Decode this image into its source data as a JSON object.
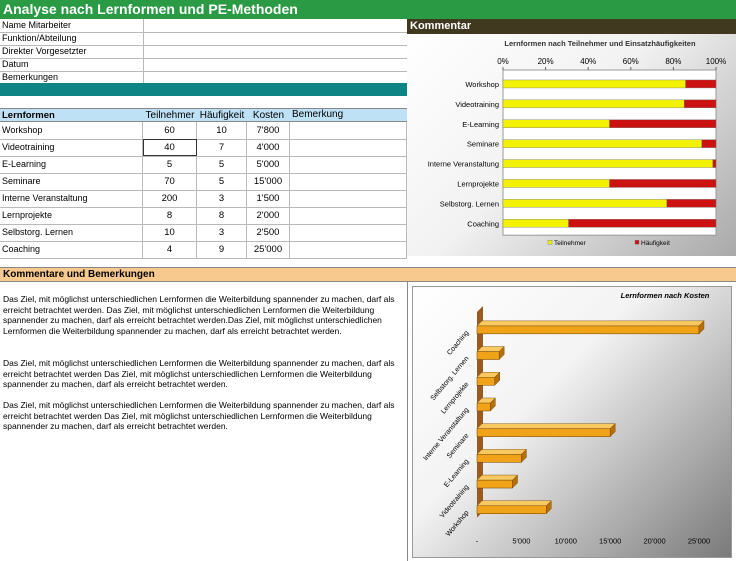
{
  "title": "Analyse nach Lernformen und PE-Methoden",
  "form_fields": [
    "Name Mitarbeiter",
    "Funktion/Abteilung",
    "Direkter Vorgesetzter",
    "Datum",
    "Bemerkungen"
  ],
  "table": {
    "headers": [
      "Lernformen",
      "Teilnehmer",
      "Häufigkeit",
      "Kosten",
      "Bemerkung"
    ],
    "rows": [
      [
        "Workshop",
        "60",
        "10",
        "7'800",
        ""
      ],
      [
        "Videotraining",
        "40",
        "7",
        "4'000",
        ""
      ],
      [
        "E-Learning",
        "5",
        "5",
        "5'000",
        ""
      ],
      [
        "Seminare",
        "70",
        "5",
        "15'000",
        ""
      ],
      [
        "Interne Veranstaltung",
        "200",
        "3",
        "1'500",
        ""
      ],
      [
        "Lernprojekte",
        "8",
        "8",
        "2'000",
        ""
      ],
      [
        "Selbstorg. Lernen",
        "10",
        "3",
        "2'500",
        ""
      ],
      [
        "Coaching",
        "4",
        "9",
        "25'000",
        ""
      ]
    ]
  },
  "comment_header": "Kommentar",
  "remarks_header": "Kommentare und Bemerkungen",
  "paragraphs": [
    "Das Ziel, mit möglichst unterschiedlichen Lernformen die Weiterbildung spannender zu machen, darf als erreicht betrachtet werden. Das Ziel, mit möglichst unterschiedlichen Lernformen die Weiterbildung spannender zu machen, darf als erreicht betrachtet werden.Das Ziel, mit möglichst unterschiedlichen Lernformen die Weiterbildung spannender zu machen, darf als erreicht betrachtet werden.",
    "Das Ziel, mit möglichst unterschiedlichen Lernformen die Weiterbildung spannender zu machen, darf als erreicht betrachtet werden Das Ziel, mit möglichst unterschiedlichen Lernformen die Weiterbildung spannender zu machen, darf als erreicht betrachtet werden.",
    "Das Ziel, mit möglichst unterschiedlichen Lernformen die Weiterbildung spannender zu machen, darf als erreicht betrachtet werden Das Ziel, mit möglichst unterschiedlichen Lernformen die Weiterbildung spannender zu machen, darf als erreicht betrachtet werden."
  ],
  "colors": {
    "title_bar": "#2a9a45",
    "teal_band": "#0e8484",
    "table_header": "#bfe1f5",
    "comment_header": "#40381f",
    "remarks_header": "#f7c98e",
    "series_teilnehmer": "#f2f200",
    "series_haeufigkeit": "#cc1111",
    "cost_bar": "#f0a319"
  },
  "chart_data": [
    {
      "type": "bar",
      "orientation": "horizontal",
      "stacked": "percent",
      "title": "Lernformen nach Teilnehmer und Einsatzhäufigkeiten",
      "categories": [
        "Workshop",
        "Videotraining",
        "E-Learning",
        "Seminare",
        "Interne Veranstaltung",
        "Lernprojekte",
        "Selbstorg. Lernen",
        "Coaching"
      ],
      "series": [
        {
          "name": "Teilnehmer",
          "values": [
            60,
            40,
            5,
            70,
            200,
            8,
            10,
            4
          ]
        },
        {
          "name": "Häufigkeit",
          "values": [
            10,
            7,
            5,
            5,
            3,
            8,
            3,
            9
          ]
        }
      ],
      "xticks": [
        "0%",
        "20%",
        "40%",
        "60%",
        "80%",
        "100%"
      ],
      "xlim": [
        0,
        100
      ],
      "legend": "bottom"
    },
    {
      "type": "bar",
      "orientation": "horizontal",
      "style": "3d",
      "title": "Lernformen nach Kosten",
      "categories": [
        "Coaching",
        "Selbstorg. Lernen",
        "Lernprojekte",
        "Interne Veranstaltung",
        "Seminare",
        "E-Learning",
        "Videotraining",
        "Workshop"
      ],
      "values": [
        25000,
        2500,
        2000,
        1500,
        15000,
        5000,
        4000,
        7800
      ],
      "xticks": [
        "-",
        "5'000",
        "10'000",
        "15'000",
        "20'000",
        "25'000"
      ],
      "xlim": [
        0,
        25000
      ]
    }
  ]
}
